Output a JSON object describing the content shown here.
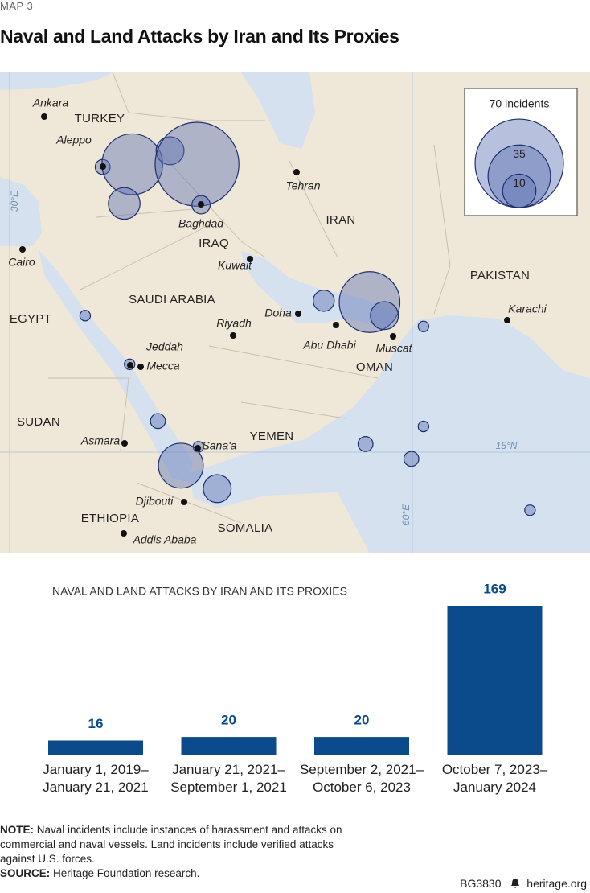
{
  "header": {
    "kicker": "MAP 3",
    "title": "Naval and Land Attacks by Iran and Its Proxies"
  },
  "map": {
    "countries": [
      "TURKEY",
      "IRAN",
      "IRAQ",
      "SAUDI ARABIA",
      "EGYPT",
      "OMAN",
      "PAKISTAN",
      "SUDAN",
      "YEMEN",
      "ETHIOPIA",
      "SOMALIA"
    ],
    "cities": [
      "Ankara",
      "Aleppo",
      "Tehran",
      "Baghdad",
      "Kuwait",
      "Cairo",
      "Doha",
      "Riyadh",
      "Abu Dhabi",
      "Muscat",
      "Karachi",
      "Jeddah",
      "Mecca",
      "Asmara",
      "Sana'a",
      "Djibouti",
      "Addis Ababa"
    ],
    "grid_labels": [
      "30°E",
      "15°N",
      "60°E"
    ],
    "legend": {
      "title": "70 incidents",
      "sizes": [
        {
          "value": 70,
          "label": "70 incidents"
        },
        {
          "value": 35,
          "label": "35"
        },
        {
          "value": 10,
          "label": "10"
        }
      ]
    },
    "incidents": [
      {
        "lon": 36.9,
        "lat": 36.1,
        "count": 2
      },
      {
        "lon": 39.1,
        "lat": 36.3,
        "count": 33
      },
      {
        "lon": 41.9,
        "lat": 37.3,
        "count": 7
      },
      {
        "lon": 43.9,
        "lat": 36.3,
        "count": 63
      },
      {
        "lon": 38.5,
        "lat": 33.4,
        "count": 9
      },
      {
        "lon": 44.2,
        "lat": 33.3,
        "count": 3
      },
      {
        "lon": 53.3,
        "lat": 26.2,
        "count": 4
      },
      {
        "lon": 56.7,
        "lat": 26.1,
        "count": 33
      },
      {
        "lon": 57.8,
        "lat": 25.1,
        "count": 7
      },
      {
        "lon": 60.7,
        "lat": 24.3,
        "count": 1
      },
      {
        "lon": 35.6,
        "lat": 25.1,
        "count": 1
      },
      {
        "lon": 38.9,
        "lat": 21.5,
        "count": 1
      },
      {
        "lon": 41.0,
        "lat": 17.3,
        "count": 2
      },
      {
        "lon": 44.0,
        "lat": 15.4,
        "count": 1
      },
      {
        "lon": 42.7,
        "lat": 14.0,
        "count": 18
      },
      {
        "lon": 45.4,
        "lat": 12.3,
        "count": 7
      },
      {
        "lon": 56.4,
        "lat": 15.6,
        "count": 2
      },
      {
        "lon": 60.7,
        "lat": 16.9,
        "count": 1
      },
      {
        "lon": 59.8,
        "lat": 14.5,
        "count": 2
      },
      {
        "lon": 68.6,
        "lat": 10.7,
        "count": 1
      }
    ]
  },
  "chart_data": {
    "type": "bar",
    "title": "NAVAL AND LAND ATTACKS BY IRAN AND ITS PROXIES",
    "categories": [
      "January 1, 2019–\nJanuary 21, 2021",
      "January 21, 2021–\nSeptember 1, 2021",
      "September 2, 2021–\nOctober 6, 2023",
      "October 7, 2023–\nJanuary 2024"
    ],
    "values": [
      16,
      20,
      20,
      169
    ],
    "color": "#0b4a8b"
  },
  "notes": {
    "note_label": "NOTE:",
    "note": "Naval incidents include instances of harassment and attacks on commercial and naval vessels. Land incidents include verified attacks against U.S. forces.",
    "source_label": "SOURCE:",
    "source": "Heritage Foundation research."
  },
  "footer": {
    "code": "BG3830",
    "site": "heritage.org"
  }
}
